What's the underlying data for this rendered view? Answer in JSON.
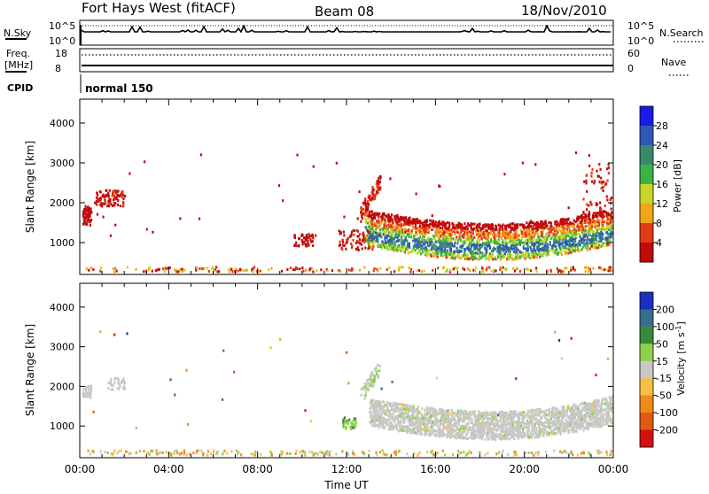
{
  "header": {
    "station": "Fort Hays West (fitACF)",
    "beam": "Beam 08",
    "date": "18/Nov/2010"
  },
  "noise_panel": {
    "left_label": "N.Sky",
    "right_label": "N.Search",
    "left_top_tick": "10^5",
    "left_bottom_tick": "10^0",
    "right_top_tick": "10^5",
    "right_bottom_tick": "10^0"
  },
  "freq_panel": {
    "left_label_line1": "Freq.",
    "left_label_line2": "[MHz]",
    "left_top_tick": "18",
    "left_bottom_tick": "8",
    "right_label": "Nave",
    "right_top_tick": "60",
    "right_bottom_tick": "0"
  },
  "cpid": {
    "label": "CPID",
    "value": "normal 150"
  },
  "chart_data": [
    {
      "type": "heatmap",
      "name": "Power panel",
      "xlabel": "Time UT",
      "ylabel": "Slant Range [km]",
      "xlim": [
        0,
        24
      ],
      "ylim": [
        200,
        4600
      ],
      "yticks": [
        "1000",
        "2000",
        "3000",
        "4000"
      ],
      "xticks": [
        "00:00",
        "04:00",
        "08:00",
        "12:00",
        "16:00",
        "20:00",
        "00:00"
      ],
      "colorbar": {
        "title": "Power [dB]",
        "ticks": [
          "4",
          "8",
          "12",
          "16",
          "20",
          "24",
          "28"
        ],
        "colors": [
          "#1a1ae6",
          "#2f57b8",
          "#3a8a6a",
          "#39b345",
          "#c8d62a",
          "#f2a51a",
          "#e03a16",
          "#c10b0b"
        ]
      }
    },
    {
      "type": "heatmap",
      "name": "Velocity panel",
      "xlabel": "Time UT",
      "ylabel": "Slant Range [km]",
      "xlim": [
        0,
        24
      ],
      "ylim": [
        200,
        4600
      ],
      "yticks": [
        "1000",
        "2000",
        "3000",
        "4000"
      ],
      "xticks": [
        "00:00",
        "04:00",
        "08:00",
        "12:00",
        "16:00",
        "20:00",
        "00:00"
      ],
      "colorbar": {
        "title_line": "Velocity",
        "title_units": "[m s",
        "title_exp": "-1",
        "title_close": "]",
        "ticks": [
          "200",
          "100",
          "50",
          "15",
          "-15",
          "-50",
          "-100",
          "-200"
        ],
        "colors": [
          "#1b2fc4",
          "#3a6f8a",
          "#3a8a3a",
          "#8fd14f",
          "#c8c8c8",
          "#f5c048",
          "#f08a1a",
          "#e05a10",
          "#d41010"
        ]
      }
    }
  ],
  "xaxis_title": "Time UT"
}
